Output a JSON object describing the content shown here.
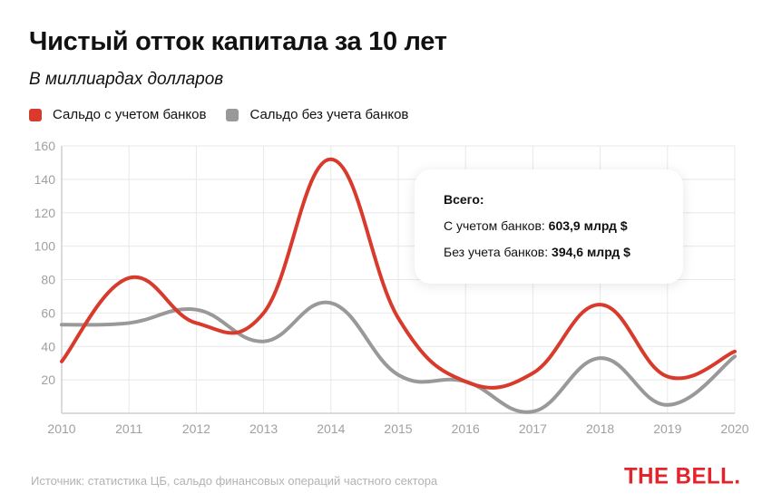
{
  "header": {
    "title": "Чистый отток капитала за 10 лет",
    "subtitle": "В миллиардах долларов"
  },
  "legend": [
    {
      "label": "Сальдо с учетом банков",
      "color": "#d83a2c"
    },
    {
      "label": "Сальдо без учета банков",
      "color": "#999999"
    }
  ],
  "tooltip": {
    "heading": "Всего:",
    "row1_label": "С учетом банков: ",
    "row1_value": "603,9 млрд $",
    "row2_label": "Без учета банков: ",
    "row2_value": "394,6 млрд $"
  },
  "footer": {
    "source": "Источник: статистика ЦБ, сальдо финансовых операций частного сектора",
    "logo": "THE BELL."
  },
  "chart_data": {
    "type": "line",
    "title": "Чистый отток капитала за 10 лет",
    "subtitle": "В миллиардах долларов",
    "xlabel": "",
    "ylabel": "",
    "x": [
      "2010",
      "2011",
      "2012",
      "2013",
      "2014",
      "2015",
      "2016",
      "2017",
      "2018",
      "2019",
      "2020"
    ],
    "ylim": [
      0,
      160
    ],
    "yticks": [
      20,
      40,
      60,
      80,
      100,
      120,
      140,
      160
    ],
    "grid": true,
    "legend_position": "top-left",
    "series": [
      {
        "name": "Сальдо с учетом банков",
        "color": "#d83a2c",
        "values": [
          31,
          81,
          54,
          60,
          152,
          57,
          19,
          24,
          65,
          22,
          37
        ]
      },
      {
        "name": "Сальдо без учета банков",
        "color": "#999999",
        "values": [
          53,
          54,
          62,
          43,
          66,
          23,
          19,
          1,
          33,
          5,
          34
        ]
      }
    ],
    "annotations": [
      "Всего:",
      "С учетом банков: 603,9 млрд $",
      "Без учета банков: 394,6 млрд $"
    ]
  }
}
